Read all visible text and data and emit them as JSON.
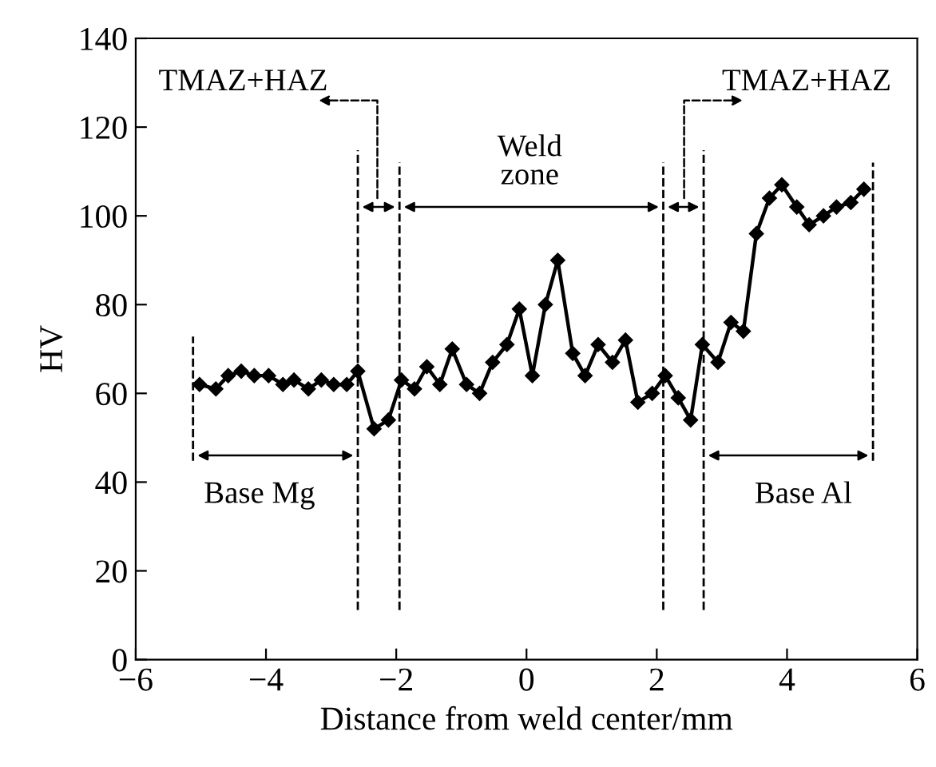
{
  "chart_data": {
    "type": "line",
    "xlabel": "Distance from weld center/mm",
    "ylabel": "HV",
    "series": [
      {
        "color": "#000000",
        "x": [
          -5.02,
          -4.77,
          -4.58,
          -4.38,
          -4.18,
          -3.96,
          -3.74,
          -3.57,
          -3.35,
          -3.15,
          -2.96,
          -2.76,
          -2.59,
          -2.34,
          -2.12,
          -1.92,
          -1.72,
          -1.53,
          -1.33,
          -1.14,
          -0.92,
          -0.72,
          -0.52,
          -0.3,
          -0.11,
          0.09,
          0.29,
          0.48,
          0.71,
          0.9,
          1.1,
          1.32,
          1.52,
          1.71,
          1.93,
          2.13,
          2.33,
          2.52,
          2.7,
          2.94,
          3.14,
          3.33,
          3.53,
          3.73,
          3.92,
          4.15,
          4.34,
          4.56,
          4.76,
          4.98,
          5.18
        ],
        "values": [
          62,
          61,
          64,
          65,
          64,
          64,
          62,
          63,
          61,
          63,
          62,
          62,
          65,
          52,
          54,
          63,
          61,
          66,
          62,
          70,
          62,
          60,
          67,
          71,
          79,
          64,
          80,
          90,
          69,
          64,
          71,
          67,
          72,
          58,
          60,
          64,
          59,
          54,
          71,
          67,
          76,
          74,
          96,
          104,
          107,
          102,
          98,
          100,
          102,
          103,
          106
        ]
      }
    ],
    "marker": "diamond",
    "line_style": "solid",
    "xlim": [
      -6,
      6
    ],
    "xticks": [
      -6,
      -4,
      -2,
      0,
      2,
      4,
      6
    ],
    "ylim": [
      0,
      140
    ],
    "yticks": [
      0,
      20,
      40,
      60,
      80,
      100,
      120,
      140
    ],
    "grid": false,
    "legend": false,
    "ref_lines": [
      {
        "axis": "x",
        "value": -5.12,
        "label": null,
        "line_style": "dashed"
      },
      {
        "axis": "x",
        "value": -2.59,
        "label": null,
        "line_style": "dashed"
      },
      {
        "axis": "x",
        "value": -1.95,
        "label": null,
        "line_style": "dashed"
      },
      {
        "axis": "x",
        "value": 2.1,
        "label": null,
        "line_style": "dashed"
      },
      {
        "axis": "x",
        "value": 2.72,
        "label": null,
        "line_style": "dashed"
      },
      {
        "axis": "x",
        "value": 5.32,
        "label": null,
        "line_style": "dashed"
      }
    ],
    "annotations": [
      "TMAZ+HAZ",
      "Weld\nzone",
      "TMAZ+HAZ",
      "Base Mg",
      "Base Al"
    ]
  }
}
